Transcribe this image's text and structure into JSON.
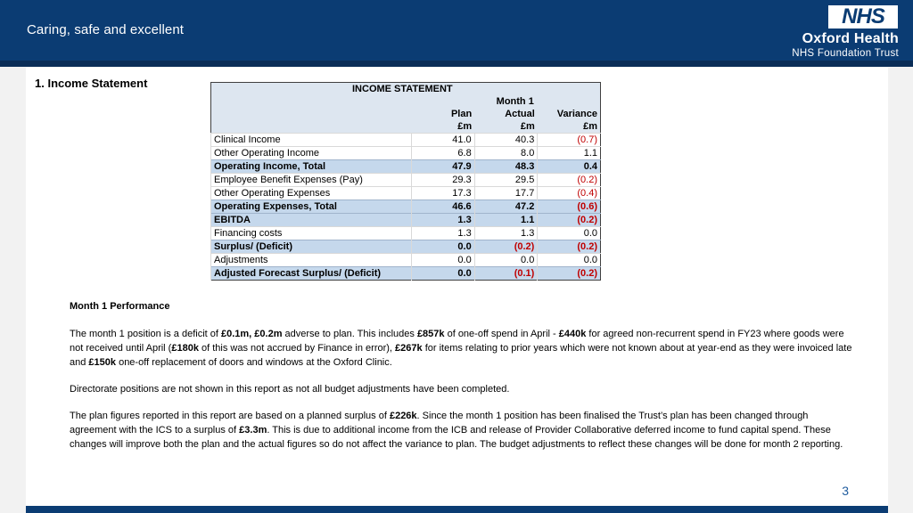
{
  "header": {
    "tagline": "Caring, safe and excellent",
    "logo_text": "NHS",
    "org_name": "Oxford Health",
    "org_sub": "NHS Foundation Trust"
  },
  "section_title": "1. Income Statement",
  "table": {
    "title": "INCOME STATEMENT",
    "period": "Month 1",
    "columns": [
      "Plan",
      "Actual",
      "Variance"
    ],
    "units": [
      "£m",
      "£m",
      "£m"
    ],
    "rows": [
      {
        "label": "Clinical Income",
        "plan": "41.0",
        "actual": "40.3",
        "variance": "(0.7)",
        "total": false
      },
      {
        "label": "Other Operating Income",
        "plan": "6.8",
        "actual": "8.0",
        "variance": "1.1",
        "total": false
      },
      {
        "label": "Operating Income, Total",
        "plan": "47.9",
        "actual": "48.3",
        "variance": "0.4",
        "total": true
      },
      {
        "label": "Employee Benefit Expenses (Pay)",
        "plan": "29.3",
        "actual": "29.5",
        "variance": "(0.2)",
        "total": false
      },
      {
        "label": "Other Operating Expenses",
        "plan": "17.3",
        "actual": "17.7",
        "variance": "(0.4)",
        "total": false
      },
      {
        "label": "Operating Expenses, Total",
        "plan": "46.6",
        "actual": "47.2",
        "variance": "(0.6)",
        "total": true
      },
      {
        "label": "EBITDA",
        "plan": "1.3",
        "actual": "1.1",
        "variance": "(0.2)",
        "total": true
      },
      {
        "label": "Financing costs",
        "plan": "1.3",
        "actual": "1.3",
        "variance": "0.0",
        "total": false
      },
      {
        "label": "Surplus/ (Deficit)",
        "plan": "0.0",
        "actual": "(0.2)",
        "variance": "(0.2)",
        "total": true
      },
      {
        "label": "Adjustments",
        "plan": "0.0",
        "actual": "0.0",
        "variance": "0.0",
        "total": false
      },
      {
        "label": "Adjusted Forecast Surplus/ (Deficit)",
        "plan": "0.0",
        "actual": "(0.1)",
        "variance": "(0.2)",
        "total": true
      }
    ]
  },
  "performance": {
    "title": "Month 1 Performance",
    "p1": [
      {
        "t": "The month 1 position is a deficit of ",
        "b": false
      },
      {
        "t": "£0.1m, £0.2m",
        "b": true
      },
      {
        "t": " adverse to plan. This includes ",
        "b": false
      },
      {
        "t": "£857k",
        "b": true
      },
      {
        "t": " of one-off spend in April - ",
        "b": false
      },
      {
        "t": "£440k",
        "b": true
      },
      {
        "t": " for agreed non-recurrent spend in FY23 where goods were not received until April (",
        "b": false
      },
      {
        "t": "£180k",
        "b": true
      },
      {
        "t": " of this was not accrued by Finance in error), ",
        "b": false
      },
      {
        "t": "£267k",
        "b": true
      },
      {
        "t": " for items relating to prior years which were not known about at year-end as they were invoiced late and ",
        "b": false
      },
      {
        "t": "£150k",
        "b": true
      },
      {
        "t": " one-off replacement of doors and windows at the Oxford Clinic.",
        "b": false
      }
    ],
    "p2": "Directorate positions are not shown in this report as not all budget adjustments have been completed.",
    "p3": [
      {
        "t": "The plan figures reported in this report are based on a planned surplus of ",
        "b": false
      },
      {
        "t": "£226k",
        "b": true
      },
      {
        "t": ". Since the month 1 position has been finalised the Trust’s plan has been changed through agreement with the ICS to a  surplus of ",
        "b": false
      },
      {
        "t": "£3.3m",
        "b": true
      },
      {
        "t": ".  This is due to additional income from the ICB and release of Provider Collaborative deferred income to fund capital spend. These changes will improve both the plan and the actual figures so do not affect the variance to plan. The budget adjustments to reflect these changes will be done for month 2 reporting.",
        "b": false
      }
    ]
  },
  "page_number": "3",
  "colors": {
    "nhs_blue": "#0b3c73",
    "header_fill": "#dde6f0",
    "total_fill": "#c5d8ec",
    "negative": "#c00000"
  }
}
